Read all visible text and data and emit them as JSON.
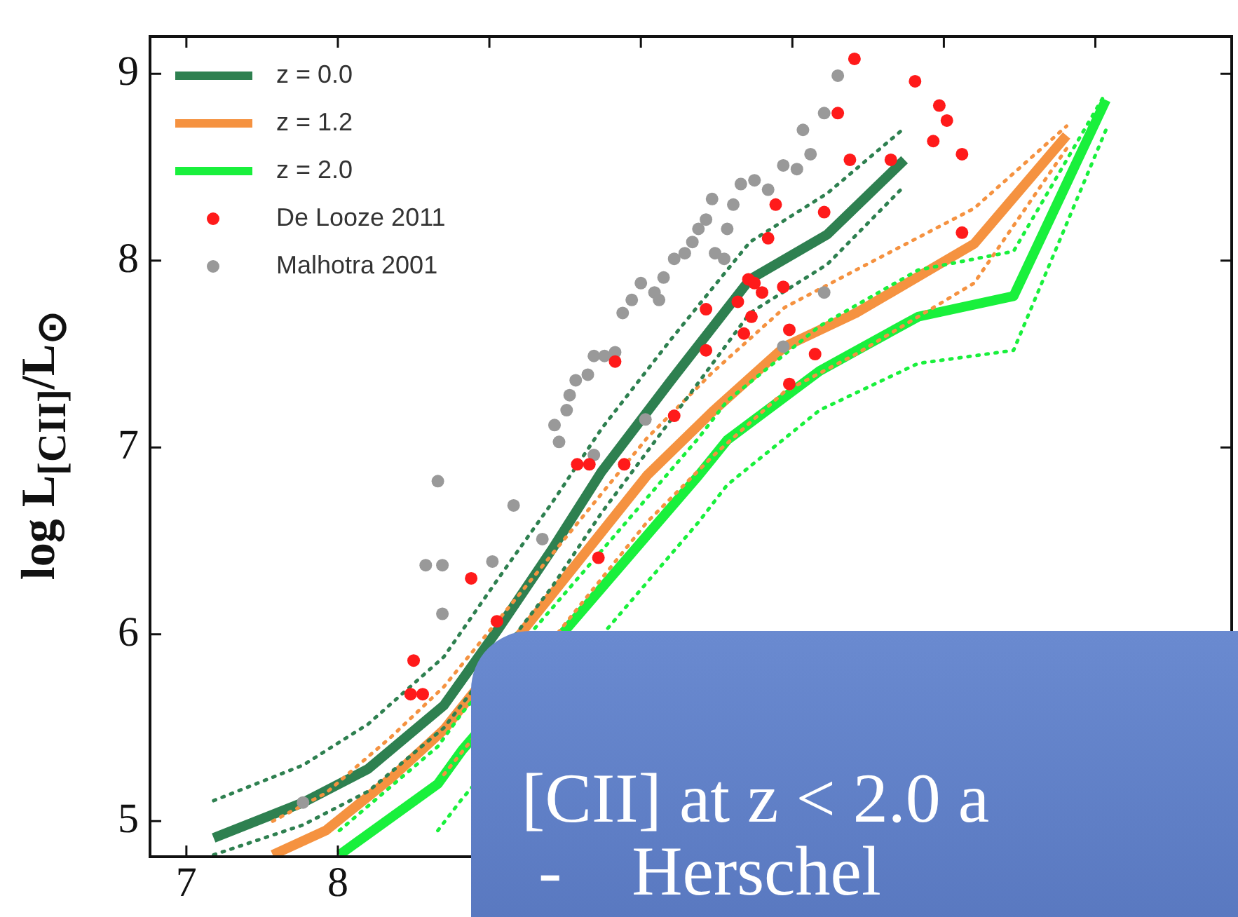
{
  "chart_data": {
    "type": "line",
    "ylabel": "log L$_{[CII]}$/L$_{⊙}$",
    "xlim": [
      6.76,
      13.9
    ],
    "ylim": [
      4.81,
      9.2
    ],
    "xticks": [
      7,
      8,
      {
        "value": 9,
        "label": null
      },
      {
        "value": 10,
        "label": null
      },
      {
        "value": 11,
        "label": null
      },
      {
        "value": 12,
        "label": null
      },
      {
        "value": 13,
        "label": null
      }
    ],
    "yticks": [
      5,
      6,
      7,
      8,
      9
    ],
    "legend": "top left",
    "line_style": "solid",
    "annotations": [
      "[CII] at z < 2.0 a",
      "-    Herschel"
    ],
    "series": [
      {
        "name": "z = 0.0",
        "marker": "none",
        "color": "#2e8050",
        "x": [
          7.18,
          7.77,
          8.2,
          8.7,
          9.06,
          9.41,
          9.74,
          10.2,
          10.72,
          11.23,
          11.74
        ],
        "values": [
          4.91,
          5.1,
          5.28,
          5.62,
          6.03,
          6.45,
          6.87,
          7.36,
          7.9,
          8.14,
          8.54
        ]
      },
      {
        "name": "z = 1.2",
        "marker": "none",
        "color": "#f59240",
        "x": [
          7.57,
          7.92,
          8.35,
          8.7,
          10.04,
          10.47,
          10.95,
          11.42,
          12.2,
          12.81
        ],
        "values": [
          4.82,
          4.95,
          5.23,
          5.49,
          6.85,
          7.19,
          7.54,
          7.72,
          8.09,
          8.67
        ]
      },
      {
        "name": "z = 2.0",
        "marker": "none",
        "color": "#19f03c",
        "x": [
          8.01,
          8.66,
          8.82,
          10.38,
          10.57,
          11.18,
          11.83,
          12.46,
          13.07
        ],
        "values": [
          4.82,
          5.2,
          5.38,
          6.85,
          7.04,
          7.41,
          7.7,
          7.81,
          8.86
        ]
      },
      {
        "type": "line",
        "marker": "none",
        "line_style": "dotted",
        "color": "#2e8050",
        "x": [
          7.18,
          7.77,
          8.2,
          8.7,
          9.06,
          9.41,
          9.74,
          10.2,
          10.72,
          11.23,
          11.74
        ],
        "values": [
          5.11,
          5.3,
          5.52,
          5.88,
          6.3,
          6.7,
          7.1,
          7.58,
          8.1,
          8.36,
          8.71
        ]
      },
      {
        "type": "line",
        "marker": "none",
        "line_style": "dotted",
        "color": "#2e8050",
        "x": [
          7.18,
          7.77,
          8.2,
          8.7,
          9.41,
          9.74,
          10.2,
          10.72,
          11.23,
          11.74
        ],
        "values": [
          4.82,
          4.98,
          5.16,
          5.5,
          6.25,
          6.65,
          7.15,
          7.72,
          7.98,
          8.4
        ]
      },
      {
        "type": "line",
        "marker": "none",
        "line_style": "dotted",
        "color": "#f59240",
        "x": [
          7.57,
          7.92,
          8.35,
          8.7,
          10.04,
          10.47,
          10.95,
          11.42,
          12.2,
          12.81
        ],
        "values": [
          5.0,
          5.15,
          5.45,
          5.72,
          7.05,
          7.4,
          7.75,
          7.95,
          8.28,
          8.72
        ]
      },
      {
        "type": "line",
        "marker": "none",
        "line_style": "dotted",
        "color": "#f59240",
        "x": [
          8.7,
          10.04,
          10.47,
          10.95,
          11.42,
          12.2,
          12.81
        ],
        "values": [
          5.25,
          6.6,
          6.95,
          7.3,
          7.5,
          7.88,
          8.6
        ]
      },
      {
        "type": "line",
        "marker": "none",
        "line_style": "dotted",
        "color": "#19f03c",
        "x": [
          8.01,
          8.66,
          8.82,
          10.38,
          10.57,
          11.18,
          11.83,
          12.46,
          13.07
        ],
        "values": [
          4.95,
          5.4,
          5.58,
          7.05,
          7.25,
          7.65,
          7.95,
          8.05,
          8.9
        ]
      },
      {
        "type": "line",
        "marker": "none",
        "line_style": "dotted",
        "color": "#19f03c",
        "x": [
          8.66,
          8.82,
          10.38,
          10.57,
          11.18,
          11.83,
          12.46,
          13.07
        ],
        "values": [
          4.95,
          5.12,
          6.6,
          6.8,
          7.2,
          7.45,
          7.52,
          8.7
        ]
      },
      {
        "name": "De Looze 2011",
        "type": "scatter",
        "marker": "circle",
        "color": "#ff1a1a",
        "x": [
          8.5,
          8.48,
          8.56,
          8.88,
          9.05,
          9.58,
          9.66,
          9.83,
          9.89,
          9.72,
          10.22,
          10.43,
          10.43,
          10.64,
          10.71,
          10.75,
          10.8,
          10.68,
          10.73,
          10.84,
          10.89,
          10.94,
          10.98,
          11.15,
          10.98,
          11.21,
          11.3,
          11.38,
          11.41,
          11.65,
          11.81,
          11.97,
          12.02,
          11.93,
          12.12,
          12.12
        ],
        "values": [
          5.86,
          5.68,
          5.68,
          6.3,
          6.07,
          6.91,
          6.91,
          7.46,
          6.91,
          6.41,
          7.17,
          7.74,
          7.52,
          7.78,
          7.9,
          7.88,
          7.83,
          7.61,
          7.7,
          8.12,
          8.3,
          7.86,
          7.63,
          7.5,
          7.34,
          8.26,
          8.79,
          8.54,
          9.08,
          8.54,
          8.96,
          8.83,
          8.75,
          8.64,
          8.57,
          8.15
        ]
      },
      {
        "name": "Malhotra 2001",
        "type": "scatter",
        "marker": "circle",
        "color": "#999999",
        "x": [
          7.77,
          8.66,
          8.58,
          8.69,
          8.69,
          9.02,
          9.16,
          9.35,
          9.43,
          9.46,
          9.51,
          9.53,
          9.57,
          9.65,
          9.69,
          9.76,
          9.83,
          9.88,
          9.94,
          10.0,
          10.09,
          10.12,
          10.15,
          10.22,
          10.29,
          10.34,
          10.38,
          10.43,
          10.47,
          10.49,
          10.55,
          10.57,
          10.61,
          10.66,
          10.75,
          10.84,
          10.94,
          11.03,
          11.07,
          11.12,
          11.21,
          11.3,
          11.21,
          10.94,
          10.24,
          10.03,
          9.69
        ],
        "values": [
          5.1,
          6.82,
          6.37,
          6.37,
          6.11,
          6.39,
          6.69,
          6.51,
          7.12,
          7.03,
          7.2,
          7.28,
          7.36,
          7.39,
          7.49,
          7.49,
          7.51,
          7.72,
          7.79,
          7.88,
          7.83,
          7.79,
          7.91,
          8.01,
          8.04,
          8.1,
          8.17,
          8.22,
          8.33,
          8.04,
          8.01,
          8.17,
          8.3,
          8.41,
          8.43,
          8.38,
          8.51,
          8.49,
          8.7,
          8.57,
          8.79,
          8.99,
          7.83,
          7.54,
          null,
          7.15,
          6.96
        ]
      }
    ]
  }
}
